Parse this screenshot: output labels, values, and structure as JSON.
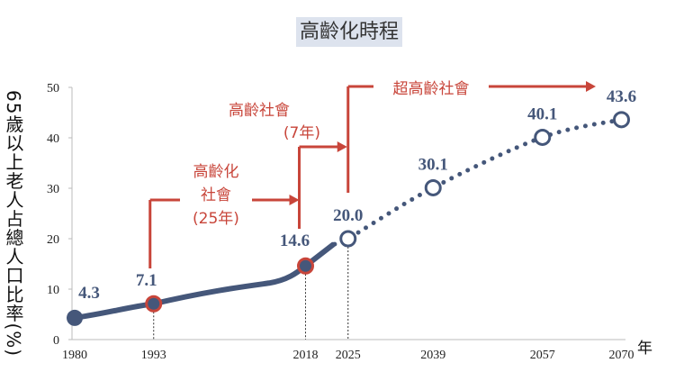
{
  "chart_data": {
    "type": "line",
    "title": "高齡化時程",
    "ylabel": "65歲以上老人占總人口比率(%)",
    "xlabel": "年",
    "ylim": [
      0,
      50
    ],
    "yticks": [
      0,
      10,
      20,
      30,
      40,
      50
    ],
    "x": [
      1980,
      1993,
      2018,
      2025,
      2039,
      2057,
      2070
    ],
    "values": [
      4.3,
      7.1,
      14.6,
      20.0,
      30.1,
      40.1,
      43.6
    ],
    "labels": [
      "4.3",
      "7.1",
      "14.6",
      "20.0",
      "30.1",
      "40.1",
      "43.6"
    ],
    "line_style": "solid through 2018, dotted projection from 2025",
    "marker_styles": [
      "filled",
      "filled-red-ring",
      "filled-red-ring",
      "open",
      "open",
      "open",
      "open"
    ],
    "annotations": [
      {
        "text": [
          "高齡化",
          "社會",
          "(25年)"
        ],
        "from": 1993,
        "to": 2018
      },
      {
        "text": [
          "高齡社會",
          "(7年)"
        ],
        "from": 2018,
        "to": 2025
      },
      {
        "text": [
          "超高齡社會"
        ],
        "from": 2025
      }
    ],
    "colors": {
      "series": "#45577a",
      "annotation": "#c8453a",
      "title_bg": "#dde3ee"
    },
    "grid": false
  }
}
